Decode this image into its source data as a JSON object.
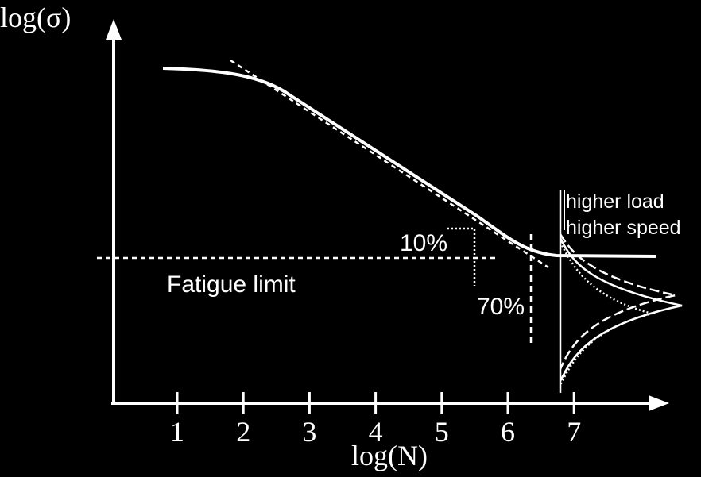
{
  "axes": {
    "y_label": "log(σ)",
    "x_label": "log(N)",
    "x_ticks": [
      "1",
      "2",
      "3",
      "4",
      "5",
      "6",
      "7"
    ]
  },
  "annotations": {
    "fatigue_limit": "Fatigue limit",
    "low_percent": "10%",
    "high_percent": "70%"
  },
  "legend": {
    "higher_load": "higher load",
    "higher_speed": "higher speed"
  }
}
